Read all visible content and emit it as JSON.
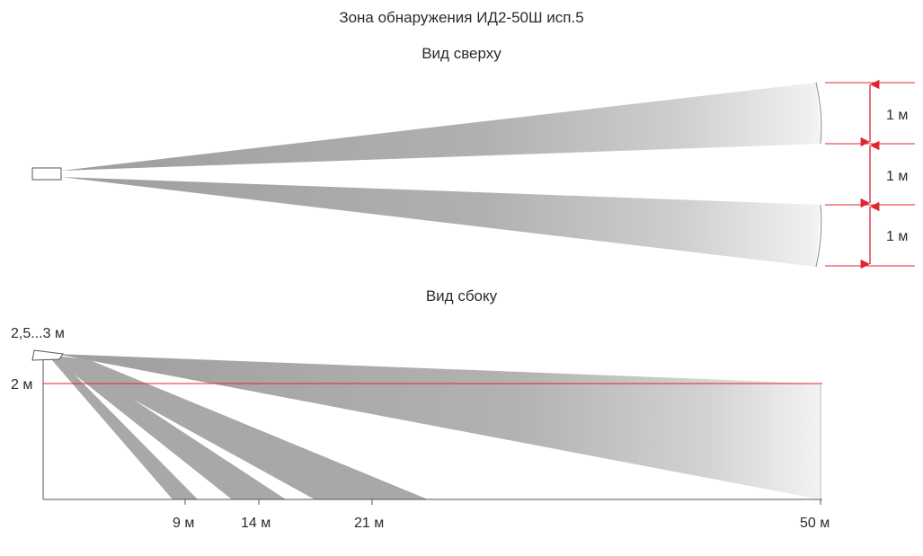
{
  "title": "Зона обнаружения ИД2-50Ш исп.5",
  "top_view": {
    "title": "Вид сверху",
    "zone_labels": [
      "1 м",
      "1 м",
      "1 м"
    ]
  },
  "side_view": {
    "title": "Вид сбоку",
    "mount_height_label": "2,5...3 м",
    "height_label": "2 м",
    "distance_labels": [
      "9 м",
      "14 м",
      "21 м",
      "50 м"
    ]
  },
  "colors": {
    "beam": "#a8a8a8",
    "beam_fade": "#f2f2f2",
    "dimension_red": "#e02430",
    "axis": "#555555"
  }
}
